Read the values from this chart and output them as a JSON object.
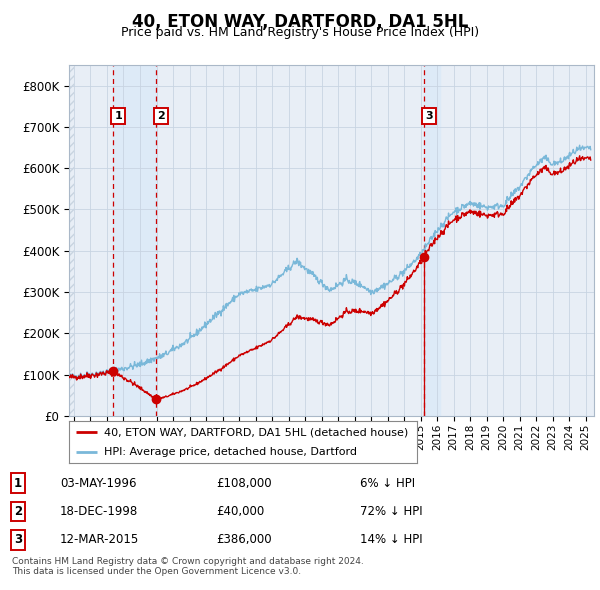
{
  "title": "40, ETON WAY, DARTFORD, DA1 5HL",
  "subtitle": "Price paid vs. HM Land Registry's House Price Index (HPI)",
  "ylim": [
    0,
    850000
  ],
  "xlim_start": 1993.7,
  "xlim_end": 2025.5,
  "yticks": [
    0,
    100000,
    200000,
    300000,
    400000,
    500000,
    600000,
    700000,
    800000
  ],
  "ytick_labels": [
    "£0",
    "£100K",
    "£200K",
    "£300K",
    "£400K",
    "£500K",
    "£600K",
    "£700K",
    "£800K"
  ],
  "hpi_color": "#7ab8d9",
  "price_color": "#cc0000",
  "vline_color": "#cc0000",
  "shade_color": "#ddeaf7",
  "hatch_color": "#c8d4e0",
  "plot_bg_color": "#e8eef6",
  "transactions": [
    {
      "date": 1996.36,
      "price": 108000,
      "label": "1"
    },
    {
      "date": 1998.96,
      "price": 40000,
      "label": "2"
    },
    {
      "date": 2015.19,
      "price": 386000,
      "label": "3"
    }
  ],
  "legend_entries": [
    "40, ETON WAY, DARTFORD, DA1 5HL (detached house)",
    "HPI: Average price, detached house, Dartford"
  ],
  "table_rows": [
    [
      "1",
      "03-MAY-1996",
      "£108,000",
      "6% ↓ HPI"
    ],
    [
      "2",
      "18-DEC-1998",
      "£40,000",
      "72% ↓ HPI"
    ],
    [
      "3",
      "12-MAR-2015",
      "£386,000",
      "14% ↓ HPI"
    ]
  ],
  "footer": "Contains HM Land Registry data © Crown copyright and database right 2024.\nThis data is licensed under the Open Government Licence v3.0.",
  "grid_color": "#c8d4e2"
}
